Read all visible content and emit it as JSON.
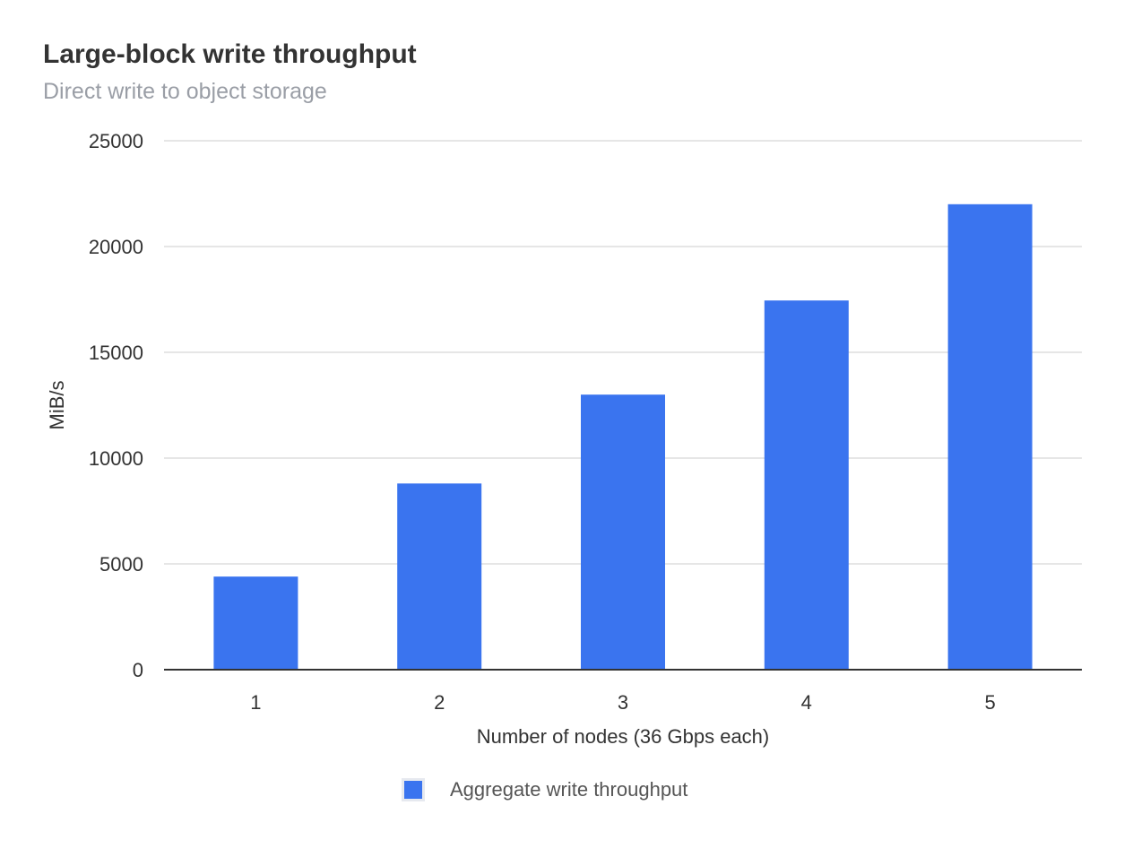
{
  "header": {
    "title": "Large-block write throughput",
    "subtitle": "Direct write to object storage"
  },
  "colors": {
    "bar": "#3a74ef",
    "grid": "#dddddd",
    "axis": "#333333",
    "text": "#333333"
  },
  "chart_data": {
    "type": "bar",
    "title": "Large-block write throughput",
    "subtitle": "Direct write to object storage",
    "xlabel": "Number of nodes (36 Gbps each)",
    "ylabel": "MiB/s",
    "categories": [
      "1",
      "2",
      "3",
      "4",
      "5"
    ],
    "series": [
      {
        "name": "Aggregate write throughput",
        "values": [
          4400,
          8800,
          13000,
          17450,
          22000
        ]
      }
    ],
    "ylim": [
      0,
      25000
    ],
    "yticks": [
      "0",
      "5000",
      "10000",
      "15000",
      "20000",
      "25000"
    ],
    "grid": true,
    "legend": "bottom"
  }
}
